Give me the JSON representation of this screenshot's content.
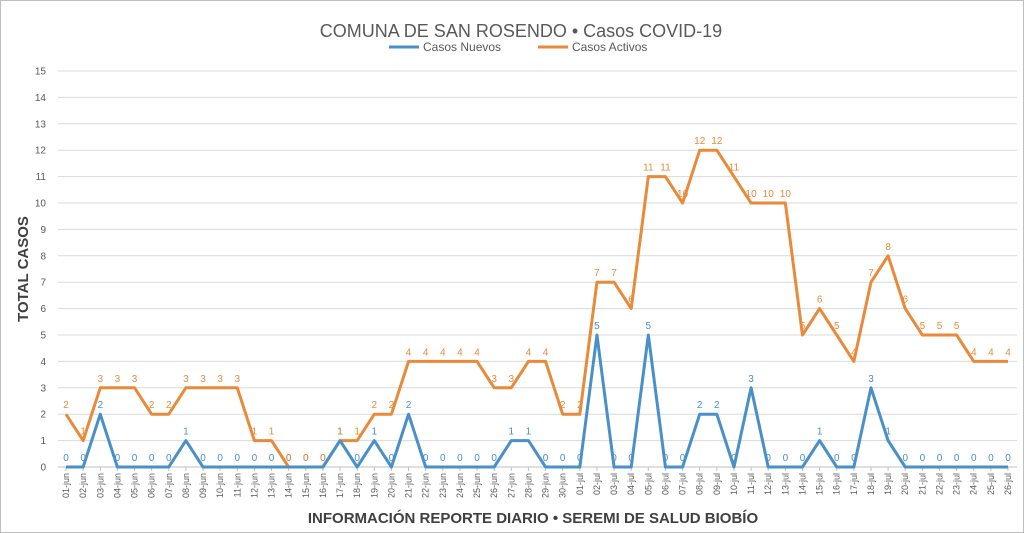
{
  "chart_data": {
    "type": "line",
    "title": "COMUNA DE SAN ROSENDO • Casos COVID-19",
    "xlabel": "INFORMACIÓN REPORTE DIARIO • SEREMI DE SALUD BIOBÍO",
    "ylabel": "TOTAL CASOS",
    "ylim": [
      0,
      15
    ],
    "yticks": [
      "0",
      "1",
      "2",
      "3",
      "4",
      "5",
      "6",
      "7",
      "8",
      "9",
      "10",
      "11",
      "12",
      "13",
      "14",
      "15"
    ],
    "grid": true,
    "legend_position": "top",
    "categories": [
      "01-jun",
      "02-jun",
      "03-jun",
      "04-jun",
      "05-jun",
      "06-jun",
      "07-jun",
      "08-jun",
      "09-jun",
      "10-jun",
      "11-jun",
      "12-jun",
      "13-jun",
      "14-jun",
      "15-jun",
      "16-jun",
      "17-jun",
      "18-jun",
      "19-jun",
      "20-jun",
      "21-jun",
      "22-jun",
      "23-jun",
      "24-jun",
      "25-jun",
      "26-jun",
      "27-jun",
      "28-jun",
      "29-jun",
      "30-jun",
      "01-jul",
      "02-jul",
      "03-jul",
      "04-jul",
      "05-jul",
      "06-jul",
      "07-jul",
      "08-jul",
      "09-jul",
      "10-jul",
      "11-jul",
      "12-jul",
      "13-jul",
      "14-jul",
      "15-jul",
      "16-jul",
      "17-jul",
      "18-jul",
      "19-jul",
      "20-jul",
      "21-jul",
      "22-jul",
      "23-jul",
      "24-jul",
      "25-jul",
      "26-jul"
    ],
    "series": [
      {
        "name": "Casos Nuevos",
        "color": "#4a90c8",
        "values": [
          0,
          0,
          2,
          0,
          0,
          0,
          0,
          1,
          0,
          0,
          0,
          0,
          0,
          0,
          0,
          0,
          1,
          0,
          1,
          0,
          2,
          0,
          0,
          0,
          0,
          0,
          1,
          1,
          0,
          0,
          0,
          5,
          0,
          0,
          5,
          0,
          0,
          2,
          2,
          0,
          3,
          0,
          0,
          0,
          1,
          0,
          0,
          3,
          1,
          0,
          0,
          0,
          0,
          0,
          0,
          0
        ]
      },
      {
        "name": "Casos Activos",
        "color": "#e98a3a",
        "values": [
          2,
          1,
          3,
          3,
          3,
          2,
          2,
          3,
          3,
          3,
          3,
          1,
          1,
          0,
          0,
          0,
          1,
          1,
          2,
          2,
          4,
          4,
          4,
          4,
          4,
          3,
          3,
          4,
          4,
          2,
          2,
          7,
          7,
          6,
          11,
          11,
          10,
          12,
          12,
          11,
          10,
          10,
          10,
          5,
          6,
          5,
          4,
          7,
          8,
          6,
          5,
          5,
          5,
          4,
          4,
          4
        ]
      }
    ]
  }
}
